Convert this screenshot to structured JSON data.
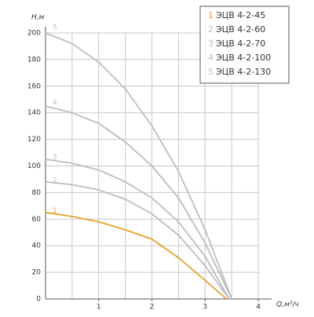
{
  "chart_data": {
    "type": "line",
    "y_label": "H,м",
    "x_label": "Q,м³/ч",
    "xlim": [
      0,
      4.25
    ],
    "ylim": [
      0,
      200
    ],
    "xticks": [
      1,
      2,
      3,
      4
    ],
    "yticks": [
      0,
      20,
      40,
      60,
      80,
      100,
      120,
      140,
      160,
      180,
      200
    ],
    "xgrid": [
      0.5,
      1,
      1.5,
      2,
      2.5,
      3,
      3.5,
      4
    ],
    "grid": true,
    "legend": "upper right",
    "series": [
      {
        "label": "1",
        "name": "ЭЦВ 4-2-45",
        "color": "#e8a030",
        "x": [
          0,
          0.5,
          1,
          1.5,
          2,
          2.5,
          3,
          3.4
        ],
        "values": [
          65,
          62,
          58,
          52,
          45,
          31,
          14,
          0
        ]
      },
      {
        "label": "2",
        "name": "ЭЦВ 4-2-60",
        "color": "#bdbdbd",
        "x": [
          0,
          0.5,
          1,
          1.5,
          2,
          2.5,
          3,
          3.45
        ],
        "values": [
          88,
          86,
          82,
          75,
          64,
          48,
          25,
          0
        ]
      },
      {
        "label": "3",
        "name": "ЭЦВ 4-2-70",
        "color": "#bdbdbd",
        "x": [
          0,
          0.5,
          1,
          1.5,
          2,
          2.5,
          3,
          3.45
        ],
        "values": [
          105,
          102,
          97,
          88,
          76,
          58,
          32,
          0
        ]
      },
      {
        "label": "4",
        "name": "ЭЦВ 4-2-100",
        "color": "#bdbdbd",
        "x": [
          0,
          0.5,
          1,
          1.5,
          2,
          2.5,
          3,
          3.5
        ],
        "values": [
          145,
          140,
          132,
          118,
          100,
          76,
          42,
          0
        ]
      },
      {
        "label": "5",
        "name": "ЭЦВ 4-2-130",
        "color": "#bdbdbd",
        "x": [
          0,
          0.5,
          1,
          1.5,
          2,
          2.5,
          3,
          3.5
        ],
        "values": [
          200,
          192,
          178,
          158,
          130,
          96,
          52,
          0
        ]
      }
    ]
  }
}
